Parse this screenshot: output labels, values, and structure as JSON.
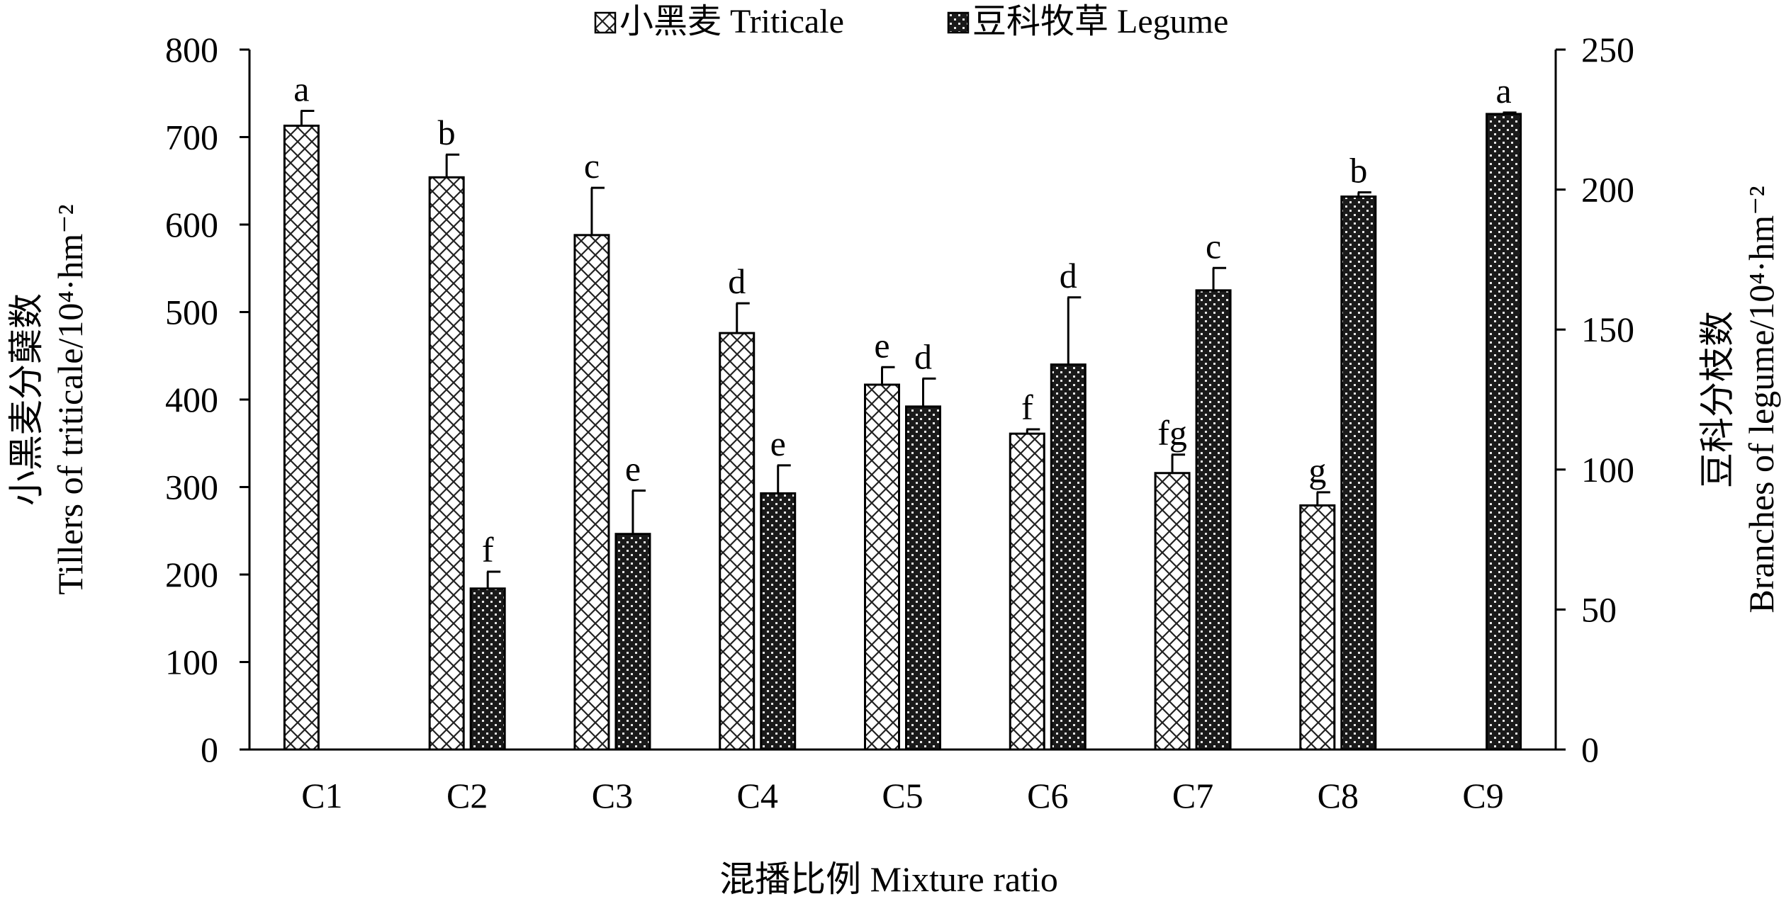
{
  "chart_data": {
    "type": "bar",
    "categories": [
      "C1",
      "C2",
      "C3",
      "C4",
      "C5",
      "C6",
      "C7",
      "C8",
      "C9"
    ],
    "xlabel": "混播比例 Mixture ratio",
    "ylabel_left": [
      "小黑麦分蘖数",
      "Tillers of triticale/10⁴·hm⁻²"
    ],
    "ylabel_right": [
      "豆科分枝数",
      "Branches of legume/10⁴·hm⁻²"
    ],
    "ylim_left": [
      0,
      800
    ],
    "yticks_left": [
      0,
      100,
      200,
      300,
      400,
      500,
      600,
      700,
      800
    ],
    "ylim_right": [
      0,
      250
    ],
    "yticks_right": [
      0,
      50,
      100,
      150,
      200,
      250
    ],
    "series": [
      {
        "name": "小黑麦 Triticale",
        "axis": "left",
        "pattern": "light-crosshatch",
        "values": [
          713,
          654,
          588,
          476,
          417,
          361,
          316,
          279,
          null
        ],
        "errors": [
          17,
          26,
          54,
          34,
          20,
          5,
          21,
          15,
          null
        ],
        "letters": [
          "a",
          "b",
          "c",
          "d",
          "e",
          "f",
          "fg",
          "g",
          ""
        ]
      },
      {
        "name": "豆科牧草 Legume",
        "axis": "right",
        "pattern": "dark-checker",
        "values": [
          null,
          57.5,
          77,
          91.5,
          122.5,
          137.5,
          164,
          197.5,
          227
        ],
        "errors": [
          null,
          6,
          15.5,
          10,
          10,
          24,
          8,
          1.5,
          0.5
        ],
        "letters": [
          "",
          "f",
          "e",
          "e",
          "d",
          "d",
          "c",
          "b",
          "a"
        ]
      }
    ]
  }
}
